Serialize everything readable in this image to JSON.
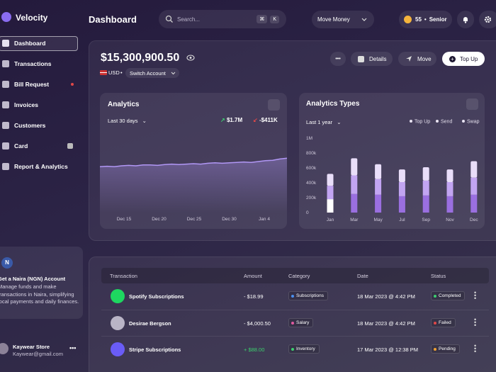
{
  "app": {
    "name": "Velocity"
  },
  "header": {
    "title": "Dashboard",
    "search_placeholder": "Search...",
    "shortcut": [
      "⌘",
      "K"
    ],
    "move_money": "Move Money",
    "points": "55",
    "level": "Senior"
  },
  "sidebar": {
    "nav": [
      {
        "label": "Dashboard",
        "active": true
      },
      {
        "label": "Transactions"
      },
      {
        "label": "Bill Request",
        "alert": true
      },
      {
        "label": "Invoices"
      },
      {
        "label": "Customers"
      },
      {
        "label": "Card",
        "locked": true
      },
      {
        "label": "Report & Analytics"
      }
    ],
    "promo": {
      "icon": "N",
      "title": "Get a Naira (NGN) Account",
      "text": "Manage funds and make transactions in Naira, simplifying local payments and daily finances."
    },
    "user": {
      "name": "Kaywear Store",
      "email": "Kaywear@gmail.com"
    }
  },
  "balance": {
    "amount": "$15,300,900.50",
    "currency": "USD",
    "switch": "Switch Account",
    "actions": [
      "Details",
      "Move",
      "Top Up"
    ]
  },
  "analytics": {
    "title": "Analytics",
    "period": "Last 30 days",
    "income": "$1.7M",
    "expense": "-$411K",
    "x_labels": [
      "Dec 15",
      "Dec 20",
      "Dec 25",
      "Dec 30",
      "Jan 4"
    ],
    "values": [
      54,
      54.5,
      54,
      55,
      55.5,
      55,
      56,
      56,
      55.5,
      56.5,
      57,
      56.5,
      57,
      57.5,
      57,
      58,
      58.5,
      58,
      58.5,
      59,
      59.5,
      59,
      60,
      61,
      61.5,
      63,
      64
    ],
    "ylim": [
      0,
      100
    ],
    "color": "#b197f5"
  },
  "analytics_types": {
    "type": "bar",
    "title": "Analytics Types",
    "period": "Last 1 year",
    "categories": [
      "Jan",
      "Mar",
      "May",
      "Jul",
      "Sep",
      "Nov",
      "Dec"
    ],
    "series": [
      {
        "name": "Top Up",
        "color": "#9a6fe0",
        "values": [
          180000,
          250000,
          240000,
          220000,
          230000,
          220000,
          240000
        ]
      },
      {
        "name": "Send",
        "color": "#c2a5f2",
        "values": [
          180000,
          250000,
          210000,
          190000,
          200000,
          190000,
          230000
        ]
      },
      {
        "name": "Swap",
        "color": "#e9def9",
        "values": [
          160000,
          230000,
          200000,
          170000,
          180000,
          170000,
          220000
        ]
      }
    ],
    "highlight": "Jan",
    "highlight_color": "#ffffff",
    "ylim": [
      0,
      1000000
    ],
    "yticks": [
      0,
      {
        "value": 200000,
        "label": "200k"
      },
      {
        "value": 400000,
        "label": "400k"
      },
      {
        "value": 600000,
        "label": "600k"
      },
      {
        "value": 800000,
        "label": "800k"
      },
      {
        "value": 1000000,
        "label": "1M"
      }
    ]
  },
  "table": {
    "columns": [
      "Transaction",
      "Amount",
      "Category",
      "Date",
      "Status"
    ],
    "rows": [
      {
        "name": "Spotify Subscriptions",
        "icon_color": "#1ed760",
        "amount": "- $18.99",
        "amount_color": "#ffffff",
        "category": "Subscriptions",
        "category_color": "#4a8ff0",
        "date": "18 Mar 2023 @ 4:42 PM",
        "status": "Completed",
        "status_color": "#3ccf6e"
      },
      {
        "name": "Desirae Bergson",
        "icon_color": "#b9b4c6",
        "amount": "- $4,000.50",
        "amount_color": "#ffffff",
        "category": "Salary",
        "category_color": "#e05aa0",
        "date": "18 Mar 2023 @ 4:42 PM",
        "status": "Failed",
        "status_color": "#e04848"
      },
      {
        "name": "Stripe Subscriptions",
        "icon_color": "#6a5cf6",
        "amount": "+ $88.00",
        "amount_color": "#3ccf6e",
        "category": "Inventory",
        "category_color": "#3ccf6e",
        "date": "17 Mar 2023 @ 12:38 PM",
        "status": "Pending",
        "status_color": "#f0a030"
      }
    ]
  }
}
